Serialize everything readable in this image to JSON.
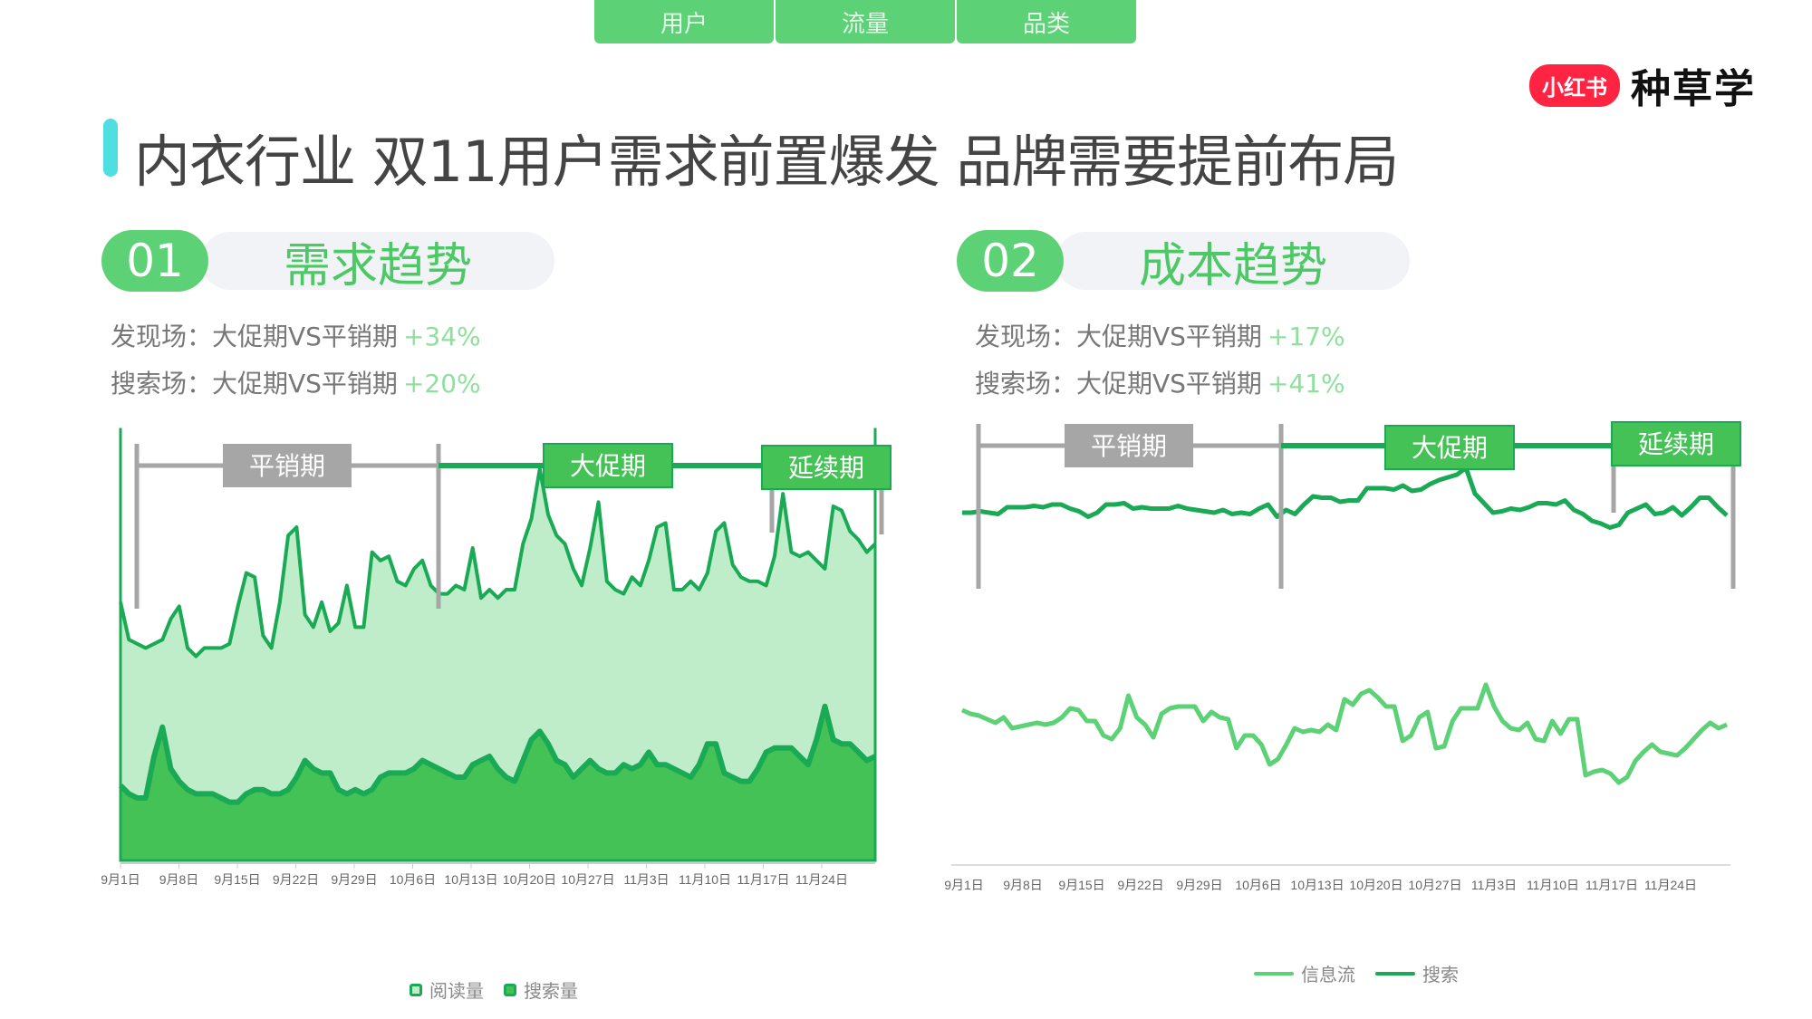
{
  "tabs": [
    {
      "label": "用户"
    },
    {
      "label": "流量"
    },
    {
      "label": "品类"
    }
  ],
  "logo": {
    "badge": "小红书",
    "text": "种草学"
  },
  "title": "内衣行业 双11用户需求前置爆发 品牌需要提前布局",
  "sections": [
    {
      "num": "01",
      "label": "需求趋势",
      "stats": [
        {
          "text": "发现场：大促期VS平销期",
          "pct": "+34%"
        },
        {
          "text": "搜索场：大促期VS平销期",
          "pct": "+20%"
        }
      ]
    },
    {
      "num": "02",
      "label": "成本趋势",
      "stats": [
        {
          "text": "发现场：大促期VS平销期",
          "pct": "+17%"
        },
        {
          "text": "搜索场：大促期VS平销期",
          "pct": "+41%"
        }
      ]
    }
  ],
  "periods": [
    "平销期",
    "大促期",
    "延续期"
  ],
  "colors": {
    "accent": "#5cd175",
    "dark_green": "#1aaa55",
    "light_fill": "#c0edc9",
    "mid_fill": "#44c256",
    "gray": "#a6a6a6",
    "light_line": "#5cd175"
  },
  "chart_data": [
    {
      "type": "area",
      "title": "需求趋势",
      "categories": [
        "9月1日",
        "9月8日",
        "9月15日",
        "9月22日",
        "9月29日",
        "10月6日",
        "10月13日",
        "10月20日",
        "10月27日",
        "11月3日",
        "11月10日",
        "11月17日",
        "11月24日"
      ],
      "series": [
        {
          "name": "阅读量",
          "values": [
            62,
            53,
            52,
            51,
            52,
            53,
            58,
            61,
            51,
            49,
            51,
            51,
            51,
            52,
            61,
            69,
            68,
            54,
            51,
            62,
            78,
            80,
            59,
            56,
            62,
            55,
            57,
            66,
            56,
            56,
            74,
            72,
            73,
            67,
            66,
            70,
            72,
            66,
            64,
            64,
            66,
            65,
            75,
            63,
            65,
            63,
            65,
            65,
            76,
            82,
            94,
            83,
            78,
            76,
            70,
            66,
            75,
            86,
            67,
            65,
            64,
            68,
            66,
            72,
            80,
            81,
            65,
            65,
            67,
            65,
            69,
            79,
            81,
            71,
            68,
            67,
            67,
            66,
            73,
            88,
            74,
            73,
            74,
            72,
            70,
            85,
            84,
            79,
            77,
            74,
            76
          ],
          "note": "relative index, 0-100 scale"
        },
        {
          "name": "搜索量",
          "values": [
            18,
            16,
            15,
            15,
            25,
            32,
            22,
            19,
            17,
            16,
            16,
            16,
            15,
            14,
            14,
            16,
            17,
            17,
            16,
            16,
            17,
            20,
            24,
            22,
            21,
            21,
            17,
            16,
            17,
            16,
            17,
            20,
            21,
            21,
            21,
            22,
            24,
            23,
            22,
            21,
            20,
            20,
            23,
            24,
            25,
            22,
            20,
            19,
            24,
            29,
            31,
            28,
            24,
            23,
            20,
            22,
            24,
            22,
            21,
            21,
            23,
            22,
            23,
            26,
            23,
            23,
            22,
            21,
            20,
            23,
            28,
            28,
            21,
            20,
            19,
            19,
            22,
            26,
            27,
            27,
            27,
            25,
            23,
            29,
            37,
            29,
            28,
            28,
            26,
            24,
            25
          ],
          "note": "relative index, 0-100 scale"
        }
      ],
      "annotations": [
        {
          "label": "平销期",
          "from": "9月1日",
          "to": "10月8日"
        },
        {
          "label": "大促期",
          "from": "10月8日",
          "to": "11月11日"
        },
        {
          "label": "延续期",
          "from": "11月16日",
          "to": "11月30日"
        }
      ],
      "legend": [
        "阅读量",
        "搜索量"
      ],
      "legend_position": "bottom",
      "grid": false
    },
    {
      "type": "line",
      "title": "成本趋势",
      "categories": [
        "9月1日",
        "9月8日",
        "9月15日",
        "9月22日",
        "9月29日",
        "10月6日",
        "10月13日",
        "10月20日",
        "10月27日",
        "11月3日",
        "11月10日",
        "11月17日",
        "11月24日"
      ],
      "series": [
        {
          "name": "信息流",
          "values": [
            58,
            56,
            55,
            53,
            51,
            54,
            48,
            49,
            50,
            51,
            50,
            51,
            54,
            59,
            58,
            52,
            52,
            44,
            42,
            48,
            66,
            54,
            50,
            43,
            56,
            59,
            60,
            60,
            60,
            52,
            57,
            54,
            53,
            37,
            44,
            44,
            39,
            28,
            31,
            39,
            48,
            46,
            47,
            46,
            50,
            47,
            64,
            61,
            67,
            69,
            65,
            60,
            60,
            41,
            44,
            54,
            57,
            37,
            38,
            52,
            59,
            59,
            59,
            72,
            60,
            52,
            48,
            47,
            51,
            42,
            41,
            52,
            45,
            53,
            53,
            22,
            24,
            25,
            23,
            18,
            21,
            30,
            35,
            39,
            35,
            34,
            33,
            37,
            42,
            47,
            51,
            48,
            50
          ],
          "note": "relative index"
        },
        {
          "name": "搜索",
          "values": [
            56,
            56,
            57,
            56,
            55,
            60,
            60,
            60,
            61,
            60,
            62,
            62,
            59,
            57,
            53,
            56,
            62,
            62,
            63,
            59,
            60,
            59,
            59,
            59,
            61,
            59,
            58,
            57,
            56,
            58,
            55,
            56,
            55,
            59,
            62,
            53,
            58,
            55,
            62,
            68,
            67,
            67,
            64,
            65,
            65,
            74,
            74,
            74,
            73,
            76,
            72,
            73,
            77,
            80,
            82,
            84,
            89,
            70,
            63,
            56,
            57,
            59,
            58,
            60,
            63,
            63,
            62,
            65,
            58,
            55,
            50,
            48,
            45,
            47,
            56,
            59,
            62,
            55,
            56,
            60,
            54,
            60,
            67,
            67,
            60,
            54
          ],
          "note": "relative index"
        }
      ],
      "annotations": [
        {
          "label": "平销期",
          "from": "9月1日",
          "to": "10月8日"
        },
        {
          "label": "大促期",
          "from": "10月8日",
          "to": "11月16日"
        },
        {
          "label": "延续期",
          "from": "11月16日",
          "to": "11月30日"
        }
      ],
      "legend": [
        "信息流",
        "搜索"
      ],
      "legend_position": "bottom",
      "grid": false
    }
  ]
}
